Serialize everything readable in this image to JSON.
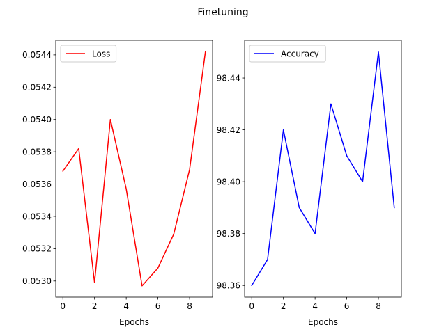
{
  "figure": {
    "title": "Finetuning"
  },
  "chart_data": [
    {
      "type": "line",
      "title": "",
      "xlabel": "Epochs",
      "ylabel": "",
      "x": [
        0,
        1,
        2,
        3,
        4,
        5,
        6,
        7,
        8,
        9
      ],
      "series": [
        {
          "name": "Loss",
          "color": "#ff0000",
          "values": [
            0.05368,
            0.05382,
            0.05299,
            0.054,
            0.05357,
            0.05297,
            0.05308,
            0.05329,
            0.05369,
            0.05442
          ]
        }
      ],
      "xlim": [
        -0.45,
        9.45
      ],
      "ylim": [
        0.0529,
        0.05449
      ],
      "xticks": [
        0,
        2,
        4,
        6,
        8
      ],
      "xtick_labels": [
        "0",
        "2",
        "4",
        "6",
        "8"
      ],
      "yticks": [
        0.053,
        0.0532,
        0.0534,
        0.0536,
        0.0538,
        0.054,
        0.0542,
        0.0544
      ],
      "ytick_labels": [
        "0.0530",
        "0.0532",
        "0.0534",
        "0.0536",
        "0.0538",
        "0.0540",
        "0.0542",
        "0.0544"
      ],
      "grid": false,
      "legend": "upper-left"
    },
    {
      "type": "line",
      "title": "",
      "xlabel": "Epochs",
      "ylabel": "",
      "x": [
        0,
        1,
        2,
        3,
        4,
        5,
        6,
        7,
        8,
        9
      ],
      "series": [
        {
          "name": "Accuracy",
          "color": "#0000ff",
          "values": [
            98.36,
            98.37,
            98.42,
            98.39,
            98.38,
            98.43,
            98.41,
            98.4,
            98.45,
            98.39
          ]
        }
      ],
      "xlim": [
        -0.45,
        9.45
      ],
      "ylim": [
        98.3555,
        98.4545
      ],
      "xticks": [
        0,
        2,
        4,
        6,
        8
      ],
      "xtick_labels": [
        "0",
        "2",
        "4",
        "6",
        "8"
      ],
      "yticks": [
        98.36,
        98.38,
        98.4,
        98.42,
        98.44
      ],
      "ytick_labels": [
        "98.36",
        "98.38",
        "98.40",
        "98.42",
        "98.44"
      ],
      "grid": false,
      "legend": "upper-left"
    }
  ]
}
